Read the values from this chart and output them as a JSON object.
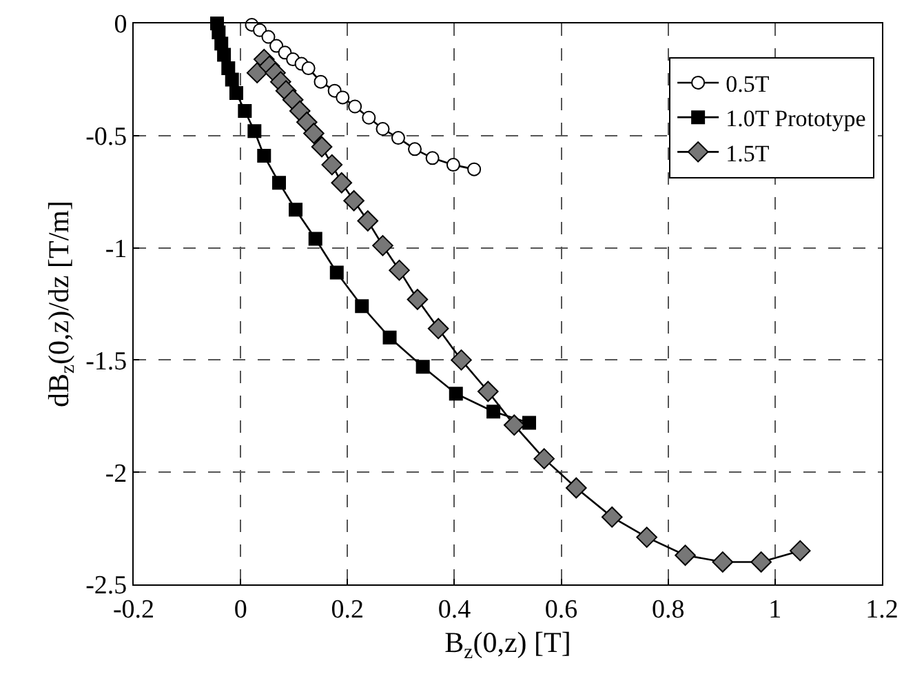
{
  "chart_data": {
    "type": "line",
    "xlabel": "B$_{z}$(0,z) [T]",
    "ylabel": "dB$_{z}$(0,z)/dz [T/m]",
    "xlim": [
      -0.2,
      1.2
    ],
    "xticks": [
      -0.2,
      0,
      0.2,
      0.4,
      0.6,
      0.8,
      1,
      1.2
    ],
    "ylim": [
      -2.5,
      0
    ],
    "yticks": [
      -2.5,
      -2,
      -1.5,
      -1,
      -0.5,
      0
    ],
    "grid": true,
    "legend": "top right",
    "line_style": "solid",
    "series": [
      {
        "name": "0.5T",
        "color": "#ffffff",
        "marker": "circle",
        "x": [
          0.021,
          0.036,
          0.052,
          0.067,
          0.083,
          0.098,
          0.114,
          0.127,
          0.15,
          0.176,
          0.191,
          0.214,
          0.24,
          0.266,
          0.295,
          0.326,
          0.359,
          0.398,
          0.437
        ],
        "values": [
          -0.006,
          -0.03,
          -0.06,
          -0.1,
          -0.13,
          -0.16,
          -0.18,
          -0.2,
          -0.26,
          -0.3,
          -0.33,
          -0.37,
          -0.42,
          -0.47,
          -0.51,
          -0.56,
          -0.6,
          -0.63,
          -0.65
        ]
      },
      {
        "name": "1.0T Prototype",
        "color": "#000000",
        "marker": "square",
        "x": [
          -0.044,
          -0.041,
          -0.036,
          -0.031,
          -0.023,
          -0.016,
          -0.008,
          0.008,
          0.026,
          0.044,
          0.072,
          0.103,
          0.14,
          0.18,
          0.227,
          0.279,
          0.341,
          0.403,
          0.473,
          0.54
        ],
        "values": [
          0,
          -0.04,
          -0.09,
          -0.14,
          -0.2,
          -0.25,
          -0.31,
          -0.39,
          -0.48,
          -0.59,
          -0.71,
          -0.83,
          -0.96,
          -1.11,
          -1.26,
          -1.4,
          -1.53,
          -1.65,
          -1.73,
          -1.78
        ]
      },
      {
        "name": "1.5T",
        "color": "#777777",
        "marker": "diamond",
        "x": [
          0.031,
          0.044,
          0.054,
          0.065,
          0.075,
          0.085,
          0.098,
          0.111,
          0.124,
          0.137,
          0.152,
          0.171,
          0.189,
          0.212,
          0.238,
          0.266,
          0.297,
          0.331,
          0.37,
          0.413,
          0.463,
          0.512,
          0.568,
          0.628,
          0.695,
          0.76,
          0.832,
          0.902,
          0.974,
          1.047
        ],
        "values": [
          -0.22,
          -0.16,
          -0.19,
          -0.22,
          -0.26,
          -0.3,
          -0.34,
          -0.39,
          -0.44,
          -0.49,
          -0.55,
          -0.63,
          -0.71,
          -0.79,
          -0.88,
          -0.99,
          -1.1,
          -1.23,
          -1.36,
          -1.5,
          -1.64,
          -1.79,
          -1.94,
          -2.07,
          -2.2,
          -2.29,
          -2.37,
          -2.4,
          -2.4,
          -2.35
        ]
      }
    ]
  }
}
